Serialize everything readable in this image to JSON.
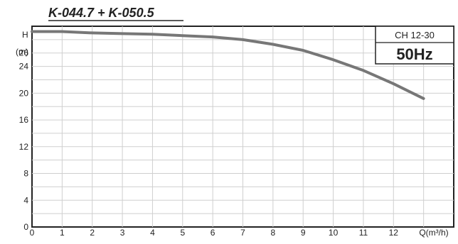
{
  "chart_data": {
    "type": "line",
    "title": "K-044.7 + K-050.5",
    "model_label": "CH 12-30",
    "frequency_label": "50Hz",
    "y_axis_label_line1": "H",
    "y_axis_label_line2": "(m)",
    "x_axis_label": "Q(m³/h)",
    "xlim": [
      0,
      14
    ],
    "ylim": [
      0,
      30
    ],
    "x_tick_values": [
      0,
      1,
      2,
      3,
      4,
      5,
      6,
      7,
      8,
      9,
      10,
      11,
      12
    ],
    "x_tick_labels": [
      "0",
      "1",
      "2",
      "3",
      "4",
      "5",
      "6",
      "7",
      "8",
      "9",
      "10",
      "11",
      "12"
    ],
    "y_tick_values": [
      0,
      4,
      8,
      12,
      16,
      20,
      24,
      26
    ],
    "y_tick_labels": [
      "0",
      "4",
      "8",
      "12",
      "16",
      "20",
      "24",
      "26"
    ],
    "grid": true,
    "series": [
      {
        "x": [
          0,
          1,
          2,
          3,
          4,
          5,
          6,
          7,
          8,
          9,
          10,
          11,
          12,
          13
        ],
        "values": [
          29.2,
          29.2,
          29.0,
          28.9,
          28.8,
          28.6,
          28.4,
          28.0,
          27.3,
          26.4,
          25.0,
          23.4,
          21.4,
          19.2
        ]
      }
    ]
  }
}
